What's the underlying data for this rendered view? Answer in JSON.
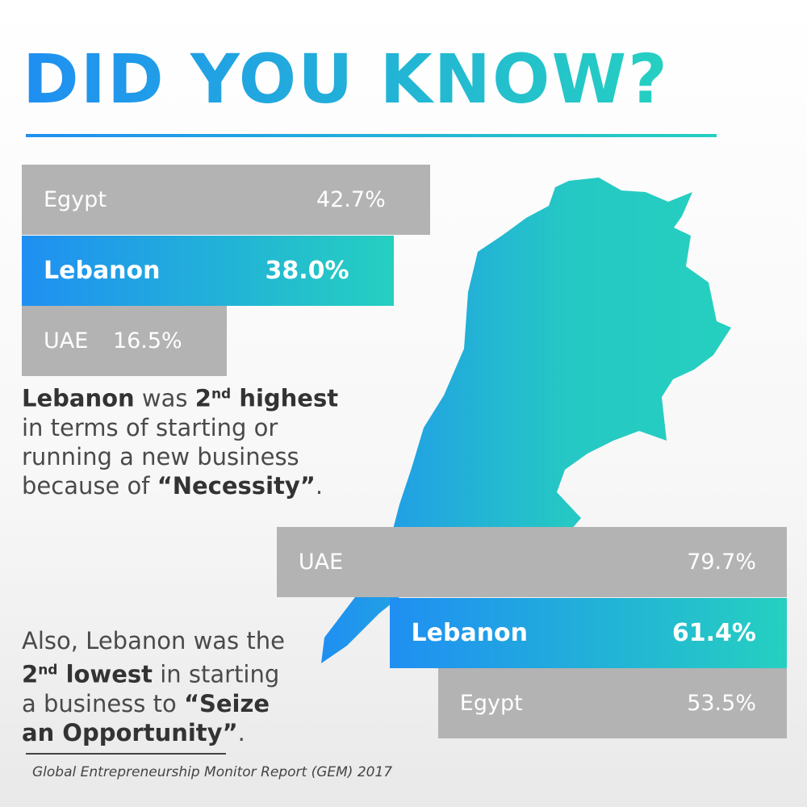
{
  "header": {
    "title": "DID YOU KNOW?"
  },
  "chart_data": [
    {
      "type": "bar",
      "orientation": "horizontal",
      "align": "left",
      "categories": [
        "Egypt",
        "Lebanon",
        "UAE"
      ],
      "values": [
        42.7,
        38.0,
        16.5
      ],
      "value_labels": [
        "42.7%",
        "38.0%",
        "16.5%"
      ],
      "color": "#b3b3b3",
      "highlight_index": 1,
      "highlight_colors": [
        "#1f8ff2",
        "#25d0c0"
      ]
    },
    {
      "type": "bar",
      "orientation": "horizontal",
      "align": "right",
      "categories": [
        "UAE",
        "Lebanon",
        "Egypt"
      ],
      "values": [
        79.7,
        61.4,
        53.5
      ],
      "value_labels": [
        "79.7%",
        "61.4%",
        "53.5%"
      ],
      "color": "#b3b3b3",
      "highlight_index": 1,
      "highlight_colors": [
        "#1f8ff2",
        "#25d0c0"
      ]
    }
  ],
  "notes": [
    [
      {
        "text": "Lebanon",
        "bold": true
      },
      {
        "text": " was "
      },
      {
        "text": "2",
        "bold": true
      },
      {
        "text": "nd",
        "bold": true,
        "sup": true
      },
      {
        "text": " highest",
        "bold": true
      },
      {
        "text": " in terms of starting or running a new business because of "
      },
      {
        "text": "“Necessity”",
        "bold": true
      },
      {
        "text": "."
      }
    ],
    [
      {
        "text": "Also, Lebanon was the "
      },
      {
        "text": "2",
        "bold": true
      },
      {
        "text": "nd",
        "bold": true,
        "sup": true
      },
      {
        "text": "  lowest",
        "bold": true
      },
      {
        "text": " in starting a business to "
      },
      {
        "text": "“Seize an Opportunity”",
        "bold": true
      },
      {
        "text": "."
      }
    ]
  ],
  "source": "Global Entrepreneurship Monitor Report (GEM) 2017"
}
